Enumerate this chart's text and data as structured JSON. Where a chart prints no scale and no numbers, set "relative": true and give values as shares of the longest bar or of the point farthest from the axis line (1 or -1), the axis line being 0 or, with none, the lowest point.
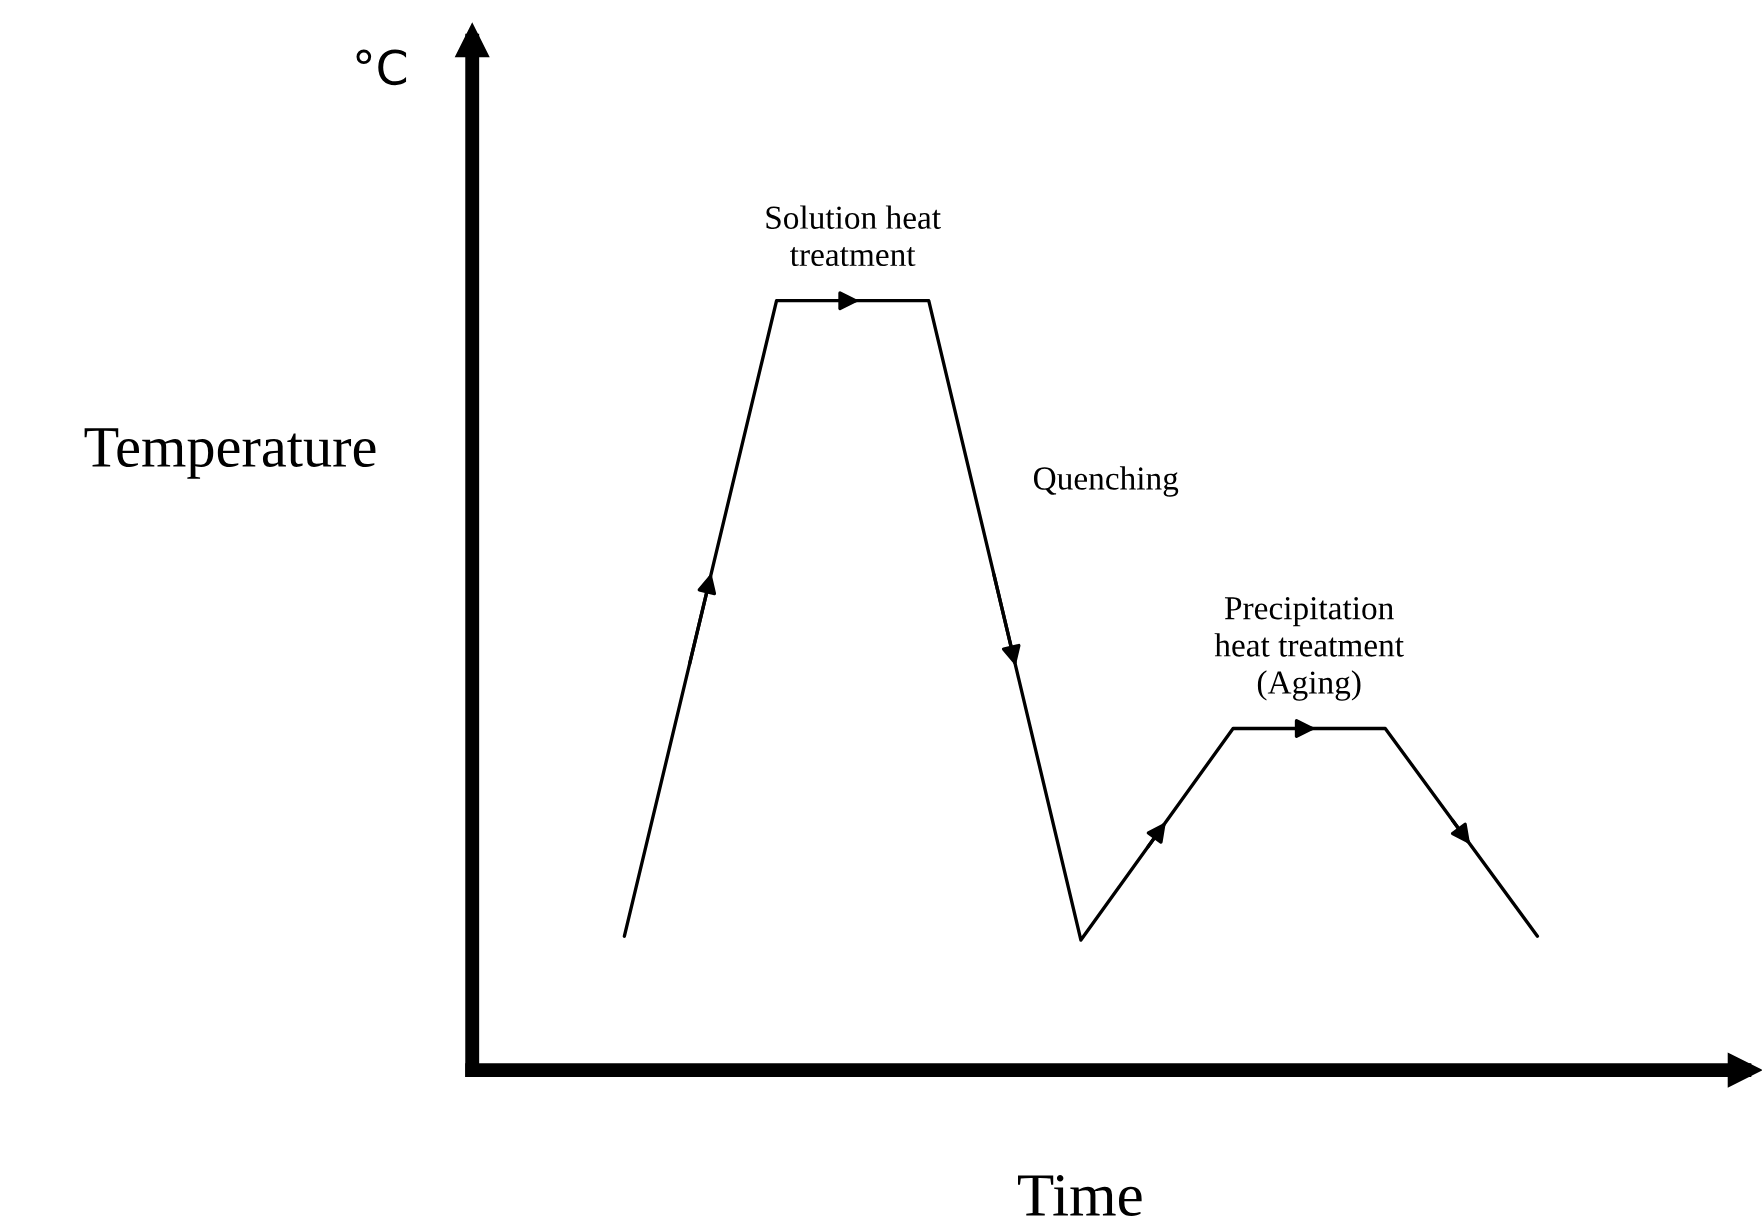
{
  "chart_data": {
    "type": "line",
    "relative": true,
    "xlabel": "Time",
    "ylabel": "Temperature",
    "categories": [
      null,
      null,
      null,
      null,
      null,
      null,
      null
    ],
    "series": [
      {
        "color": "#000000",
        "values": [
          0.174,
          1,
          1,
          0.169,
          0.444,
          0.444,
          0.174
        ]
      }
    ],
    "annotations": [
      "°C",
      "Solution heat\ntreatment",
      "Quenching",
      "Precipitation\nheat treatment\n(Aging)"
    ]
  }
}
